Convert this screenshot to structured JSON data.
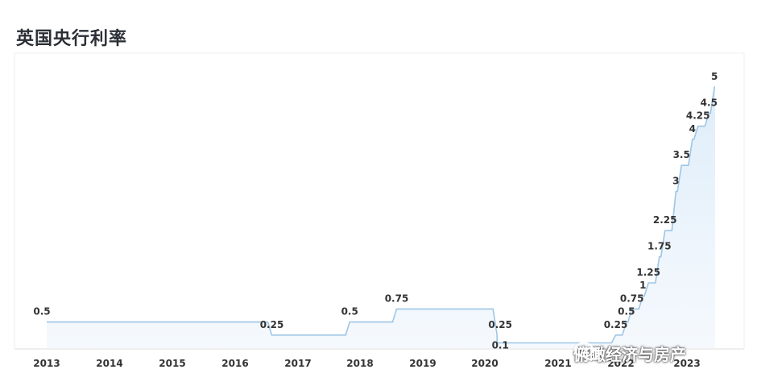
{
  "title": "英国央行利率",
  "watermark": "俯瞰经济与房产",
  "colors": {
    "line": "#9dc6e6",
    "area_top": "#dcebf9",
    "label": "#333333",
    "axis": "#dddddd"
  },
  "chart_data": {
    "type": "area",
    "title": "英国央行利率",
    "xlabel": "",
    "ylabel": "",
    "x_ticks": [
      "2013",
      "2014",
      "2015",
      "2016",
      "2017",
      "2018",
      "2019",
      "2020",
      "2021",
      "2022",
      "2023"
    ],
    "ylim": [
      0,
      5
    ],
    "grid": false,
    "series": [
      {
        "points": [
          {
            "x": "2013-01",
            "y": 0.5,
            "label": "0.5"
          },
          {
            "x": "2016-08",
            "y": 0.25,
            "label": "0.25"
          },
          {
            "x": "2017-11",
            "y": 0.5,
            "label": "0.5"
          },
          {
            "x": "2018-08",
            "y": 0.75,
            "label": "0.75"
          },
          {
            "x": "2020-03",
            "y": 0.25,
            "label": "0.25"
          },
          {
            "x": "2020-03",
            "y": 0.1,
            "label": "0.1"
          },
          {
            "x": "2021-12",
            "y": 0.25,
            "label": "0.25"
          },
          {
            "x": "2022-02",
            "y": 0.5,
            "label": "0.5"
          },
          {
            "x": "2022-03",
            "y": 0.75,
            "label": "0.75"
          },
          {
            "x": "2022-05",
            "y": 1,
            "label": "1"
          },
          {
            "x": "2022-06",
            "y": 1.25,
            "label": "1.25"
          },
          {
            "x": "2022-08",
            "y": 1.75,
            "label": "1.75"
          },
          {
            "x": "2022-09",
            "y": 2.25,
            "label": "2.25"
          },
          {
            "x": "2022-11",
            "y": 3,
            "label": "3"
          },
          {
            "x": "2022-12",
            "y": 3.5,
            "label": "3.5"
          },
          {
            "x": "2023-02",
            "y": 4,
            "label": "4"
          },
          {
            "x": "2023-03",
            "y": 4.25,
            "label": "4.25"
          },
          {
            "x": "2023-05",
            "y": 4.5,
            "label": "4.5"
          },
          {
            "x": "2023-06",
            "y": 5,
            "label": "5"
          }
        ]
      }
    ]
  }
}
